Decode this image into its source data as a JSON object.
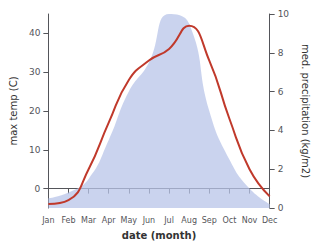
{
  "chart_data": {
    "type": "line",
    "xlabel": "date (month)",
    "ylabel": "max temp (C)",
    "y2label": "med. precipitation (kg/m2)",
    "categories": [
      "Jan",
      "Feb",
      "Mar",
      "Apr",
      "May",
      "Jun",
      "Jul",
      "Aug",
      "Sep",
      "Oct",
      "Nov",
      "Dec"
    ],
    "series": [
      {
        "type": "area",
        "axis": "y2",
        "color": "#b8c4e8",
        "values": [
          0.5,
          0.8,
          1.5,
          3.5,
          6.0,
          7.5,
          10.0,
          9.5,
          5.0,
          2.5,
          1.0,
          0.2
        ]
      },
      {
        "type": "line",
        "color": "#c0392b",
        "values": [
          -4,
          -3,
          5,
          17,
          28,
          33,
          36,
          42,
          33,
          18,
          5,
          -2
        ]
      }
    ],
    "ylim": [
      -5,
      45
    ],
    "yticks": [
      0,
      10,
      20,
      30,
      40
    ],
    "y2lim": [
      0,
      10
    ],
    "y2ticks": [
      0,
      2,
      4,
      6,
      8,
      10
    ],
    "grid": false
  }
}
